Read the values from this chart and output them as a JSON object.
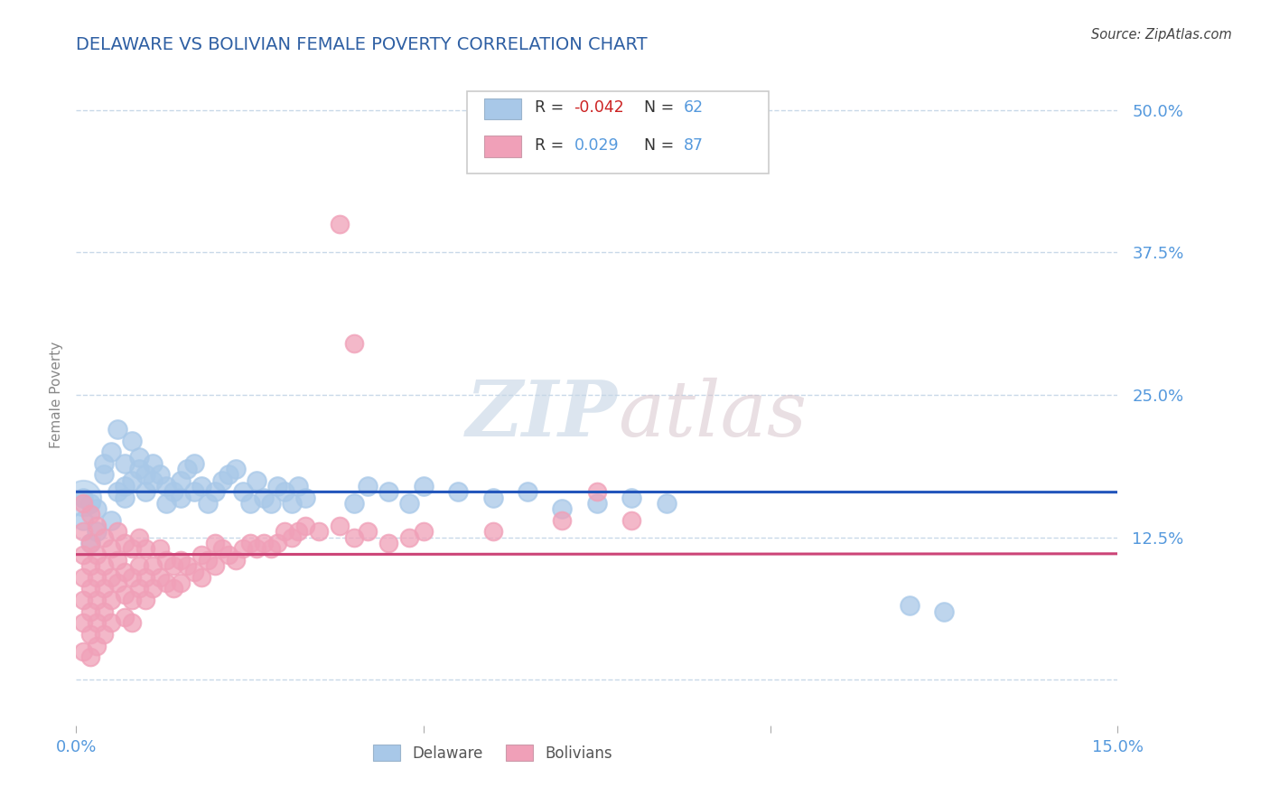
{
  "title": "DELAWARE VS BOLIVIAN FEMALE POVERTY CORRELATION CHART",
  "source": "Source: ZipAtlas.com",
  "ylabel": "Female Poverty",
  "xlabel": "",
  "xlim": [
    0.0,
    0.15
  ],
  "ylim": [
    -0.04,
    0.54
  ],
  "yticks": [
    0.0,
    0.125,
    0.25,
    0.375,
    0.5
  ],
  "ytick_labels": [
    "",
    "12.5%",
    "25.0%",
    "37.5%",
    "50.0%"
  ],
  "xticks": [
    0.0,
    0.05,
    0.1,
    0.15
  ],
  "xtick_labels": [
    "0.0%",
    "",
    "",
    "15.0%"
  ],
  "title_color": "#2e5fa3",
  "axis_color": "#5599dd",
  "delaware_color": "#a8c8e8",
  "bolivian_color": "#f0a0b8",
  "trend_delaware_color": "#2255bb",
  "trend_bolivian_color": "#cc4477",
  "watermark_zip": "ZIP",
  "watermark_atlas": "atlas",
  "delaware_scatter": [
    [
      0.001,
      0.16
    ],
    [
      0.001,
      0.14
    ],
    [
      0.002,
      0.155
    ],
    [
      0.002,
      0.12
    ],
    [
      0.003,
      0.15
    ],
    [
      0.003,
      0.13
    ],
    [
      0.004,
      0.18
    ],
    [
      0.004,
      0.19
    ],
    [
      0.005,
      0.14
    ],
    [
      0.005,
      0.2
    ],
    [
      0.006,
      0.22
    ],
    [
      0.006,
      0.165
    ],
    [
      0.007,
      0.16
    ],
    [
      0.007,
      0.19
    ],
    [
      0.007,
      0.17
    ],
    [
      0.008,
      0.21
    ],
    [
      0.008,
      0.175
    ],
    [
      0.009,
      0.185
    ],
    [
      0.009,
      0.195
    ],
    [
      0.01,
      0.165
    ],
    [
      0.01,
      0.18
    ],
    [
      0.011,
      0.175
    ],
    [
      0.011,
      0.19
    ],
    [
      0.012,
      0.18
    ],
    [
      0.013,
      0.17
    ],
    [
      0.013,
      0.155
    ],
    [
      0.014,
      0.165
    ],
    [
      0.015,
      0.175
    ],
    [
      0.015,
      0.16
    ],
    [
      0.016,
      0.185
    ],
    [
      0.017,
      0.19
    ],
    [
      0.017,
      0.165
    ],
    [
      0.018,
      0.17
    ],
    [
      0.019,
      0.155
    ],
    [
      0.02,
      0.165
    ],
    [
      0.021,
      0.175
    ],
    [
      0.022,
      0.18
    ],
    [
      0.023,
      0.185
    ],
    [
      0.024,
      0.165
    ],
    [
      0.025,
      0.155
    ],
    [
      0.026,
      0.175
    ],
    [
      0.027,
      0.16
    ],
    [
      0.028,
      0.155
    ],
    [
      0.029,
      0.17
    ],
    [
      0.03,
      0.165
    ],
    [
      0.031,
      0.155
    ],
    [
      0.032,
      0.17
    ],
    [
      0.033,
      0.16
    ],
    [
      0.04,
      0.155
    ],
    [
      0.042,
      0.17
    ],
    [
      0.045,
      0.165
    ],
    [
      0.048,
      0.155
    ],
    [
      0.05,
      0.17
    ],
    [
      0.055,
      0.165
    ],
    [
      0.06,
      0.16
    ],
    [
      0.065,
      0.165
    ],
    [
      0.07,
      0.15
    ],
    [
      0.075,
      0.155
    ],
    [
      0.08,
      0.16
    ],
    [
      0.085,
      0.155
    ],
    [
      0.12,
      0.065
    ],
    [
      0.125,
      0.06
    ]
  ],
  "bolivian_scatter": [
    [
      0.001,
      0.155
    ],
    [
      0.001,
      0.13
    ],
    [
      0.001,
      0.11
    ],
    [
      0.001,
      0.09
    ],
    [
      0.001,
      0.07
    ],
    [
      0.001,
      0.05
    ],
    [
      0.001,
      0.025
    ],
    [
      0.002,
      0.145
    ],
    [
      0.002,
      0.12
    ],
    [
      0.002,
      0.1
    ],
    [
      0.002,
      0.08
    ],
    [
      0.002,
      0.06
    ],
    [
      0.002,
      0.04
    ],
    [
      0.002,
      0.02
    ],
    [
      0.003,
      0.135
    ],
    [
      0.003,
      0.11
    ],
    [
      0.003,
      0.09
    ],
    [
      0.003,
      0.07
    ],
    [
      0.003,
      0.05
    ],
    [
      0.003,
      0.03
    ],
    [
      0.004,
      0.125
    ],
    [
      0.004,
      0.1
    ],
    [
      0.004,
      0.08
    ],
    [
      0.004,
      0.06
    ],
    [
      0.004,
      0.04
    ],
    [
      0.005,
      0.115
    ],
    [
      0.005,
      0.09
    ],
    [
      0.005,
      0.07
    ],
    [
      0.005,
      0.05
    ],
    [
      0.006,
      0.13
    ],
    [
      0.006,
      0.105
    ],
    [
      0.006,
      0.085
    ],
    [
      0.007,
      0.12
    ],
    [
      0.007,
      0.095
    ],
    [
      0.007,
      0.075
    ],
    [
      0.007,
      0.055
    ],
    [
      0.008,
      0.115
    ],
    [
      0.008,
      0.09
    ],
    [
      0.008,
      0.07
    ],
    [
      0.008,
      0.05
    ],
    [
      0.009,
      0.125
    ],
    [
      0.009,
      0.1
    ],
    [
      0.009,
      0.08
    ],
    [
      0.01,
      0.115
    ],
    [
      0.01,
      0.09
    ],
    [
      0.01,
      0.07
    ],
    [
      0.011,
      0.1
    ],
    [
      0.011,
      0.08
    ],
    [
      0.012,
      0.115
    ],
    [
      0.012,
      0.09
    ],
    [
      0.013,
      0.105
    ],
    [
      0.013,
      0.085
    ],
    [
      0.014,
      0.1
    ],
    [
      0.014,
      0.08
    ],
    [
      0.015,
      0.105
    ],
    [
      0.015,
      0.085
    ],
    [
      0.016,
      0.1
    ],
    [
      0.017,
      0.095
    ],
    [
      0.018,
      0.11
    ],
    [
      0.018,
      0.09
    ],
    [
      0.019,
      0.105
    ],
    [
      0.02,
      0.12
    ],
    [
      0.02,
      0.1
    ],
    [
      0.021,
      0.115
    ],
    [
      0.022,
      0.11
    ],
    [
      0.023,
      0.105
    ],
    [
      0.024,
      0.115
    ],
    [
      0.025,
      0.12
    ],
    [
      0.026,
      0.115
    ],
    [
      0.027,
      0.12
    ],
    [
      0.028,
      0.115
    ],
    [
      0.029,
      0.12
    ],
    [
      0.03,
      0.13
    ],
    [
      0.031,
      0.125
    ],
    [
      0.032,
      0.13
    ],
    [
      0.033,
      0.135
    ],
    [
      0.035,
      0.13
    ],
    [
      0.038,
      0.135
    ],
    [
      0.04,
      0.125
    ],
    [
      0.04,
      0.295
    ],
    [
      0.042,
      0.13
    ],
    [
      0.045,
      0.12
    ],
    [
      0.048,
      0.125
    ],
    [
      0.05,
      0.13
    ],
    [
      0.06,
      0.13
    ],
    [
      0.07,
      0.14
    ],
    [
      0.075,
      0.165
    ],
    [
      0.08,
      0.14
    ]
  ]
}
